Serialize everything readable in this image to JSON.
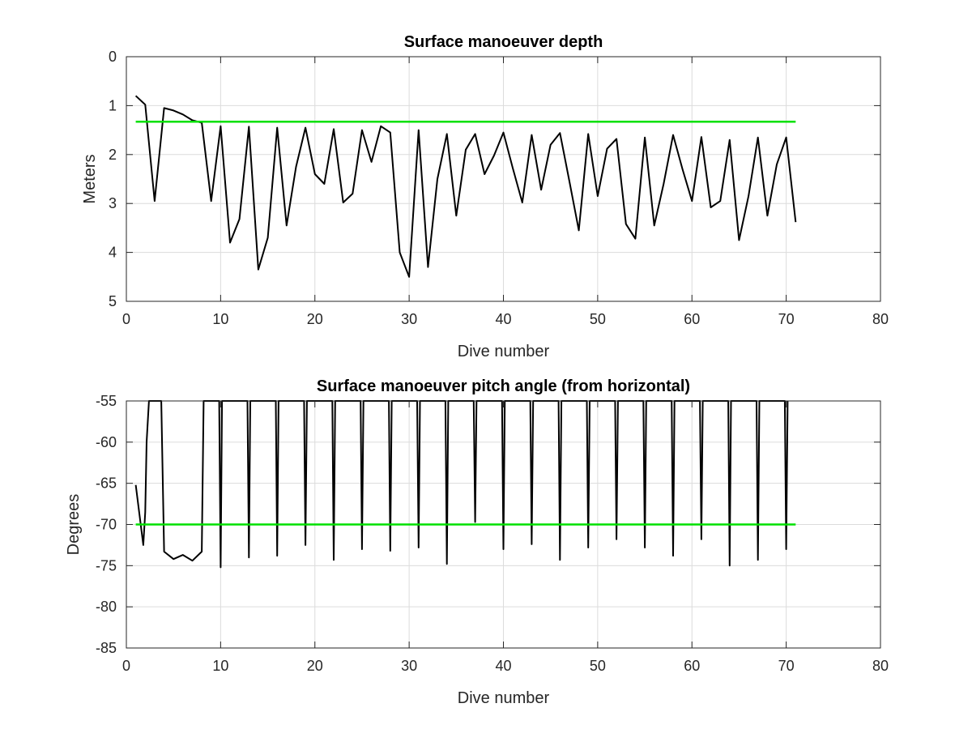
{
  "chart_data": [
    {
      "type": "line",
      "title": "Surface manoeuver depth",
      "xlabel": "Dive number",
      "ylabel": "Meters",
      "xlim": [
        0,
        80
      ],
      "ylim": [
        0,
        5
      ],
      "y_reversed": true,
      "grid": true,
      "x_ticks": [
        "0",
        "10",
        "20",
        "30",
        "40",
        "50",
        "60",
        "70",
        "80"
      ],
      "y_ticks": [
        "0",
        "1",
        "2",
        "3",
        "4",
        "5"
      ],
      "series": [
        {
          "color": "#000000",
          "x": [
            1,
            2,
            3,
            4,
            5,
            6,
            7,
            8,
            9,
            10,
            11,
            12,
            13,
            14,
            15,
            16,
            17,
            18,
            19,
            20,
            21,
            22,
            23,
            24,
            25,
            26,
            27,
            28,
            29,
            30,
            31,
            32,
            33,
            34,
            35,
            36,
            37,
            38,
            39,
            40,
            41,
            42,
            43,
            44,
            45,
            46,
            47,
            48,
            49,
            50,
            51,
            52,
            53,
            54,
            55,
            56,
            57,
            58,
            59,
            60,
            61,
            62,
            63,
            64,
            65,
            66,
            67,
            68,
            69,
            70,
            71
          ],
          "y": [
            0.8,
            0.98,
            2.95,
            1.05,
            1.1,
            1.18,
            1.3,
            1.35,
            2.95,
            1.42,
            3.8,
            3.32,
            1.43,
            4.35,
            3.7,
            1.45,
            3.45,
            2.25,
            1.45,
            2.4,
            2.6,
            1.48,
            2.98,
            2.8,
            1.5,
            2.15,
            1.42,
            1.55,
            4.0,
            4.5,
            1.5,
            4.3,
            2.5,
            1.58,
            3.25,
            1.9,
            1.58,
            2.4,
            2.02,
            1.55,
            2.28,
            2.98,
            1.6,
            2.72,
            1.8,
            1.56,
            2.55,
            3.55,
            1.58,
            2.85,
            1.88,
            1.68,
            3.42,
            3.72,
            1.65,
            3.45,
            2.6,
            1.6,
            2.3,
            2.95,
            1.64,
            3.08,
            2.95,
            1.7,
            3.75,
            2.85,
            1.65,
            3.25,
            2.2,
            1.65,
            3.38
          ]
        },
        {
          "color": "#00e000",
          "x": [
            1,
            71
          ],
          "y": [
            1.33,
            1.33
          ]
        }
      ]
    },
    {
      "type": "line",
      "title": "Surface manoeuver pitch angle (from horizontal)",
      "xlabel": "Dive number",
      "ylabel": "Degrees",
      "xlim": [
        0,
        80
      ],
      "ylim": [
        -85,
        -55
      ],
      "grid": true,
      "x_ticks": [
        "0",
        "10",
        "20",
        "30",
        "40",
        "50",
        "60",
        "70",
        "80"
      ],
      "y_ticks": [
        "-55",
        "-60",
        "-65",
        "-70",
        "-75",
        "-80",
        "-85"
      ],
      "series": [
        {
          "color": "#000000",
          "x": [
            1,
            1.8,
            2,
            2.15,
            2.4,
            3.7,
            4,
            5,
            6,
            7,
            8,
            8.2,
            9.85,
            10,
            10.15,
            12.85,
            13,
            13.15,
            15.85,
            16,
            16.15,
            18.85,
            19,
            19.15,
            21.85,
            22,
            22.15,
            24.85,
            25,
            25.15,
            27.85,
            28,
            28.15,
            30.85,
            31,
            31.15,
            33.85,
            34,
            34.15,
            36.85,
            37,
            37.15,
            39.85,
            40,
            40.15,
            42.85,
            43,
            43.15,
            45.85,
            46,
            46.15,
            48.85,
            49,
            49.15,
            51.85,
            52,
            52.15,
            54.85,
            55,
            55.15,
            57.85,
            58,
            58.15,
            60.85,
            61,
            61.15,
            63.85,
            64,
            64.15,
            66.85,
            67,
            67.15,
            69.85,
            70,
            70.15
          ],
          "y": [
            -65.2,
            -72.5,
            -68.5,
            -60,
            -55,
            -55,
            -73.3,
            -74.2,
            -73.7,
            -74.4,
            -73.3,
            -55,
            -55,
            -75.2,
            -55,
            -55,
            -74,
            -55,
            -55,
            -73.8,
            -55,
            -55,
            -72.5,
            -55,
            -55,
            -74.3,
            -55,
            -55,
            -73,
            -55,
            -55,
            -73.2,
            -55,
            -55,
            -72.8,
            -55,
            -55,
            -74.8,
            -55,
            -55,
            -69.7,
            -55,
            -55,
            -73,
            -55,
            -55,
            -72.4,
            -55,
            -55,
            -74.3,
            -55,
            -55,
            -72.8,
            -55,
            -55,
            -71.8,
            -55,
            -55,
            -72.8,
            -55,
            -55,
            -73.8,
            -55,
            -55,
            -71.8,
            -55,
            -55,
            -75,
            -55,
            -55,
            -74.3,
            -55,
            -55,
            -73,
            -55
          ]
        },
        {
          "color": "#00e000",
          "x": [
            1,
            71
          ],
          "y": [
            -70,
            -70
          ]
        }
      ]
    }
  ]
}
